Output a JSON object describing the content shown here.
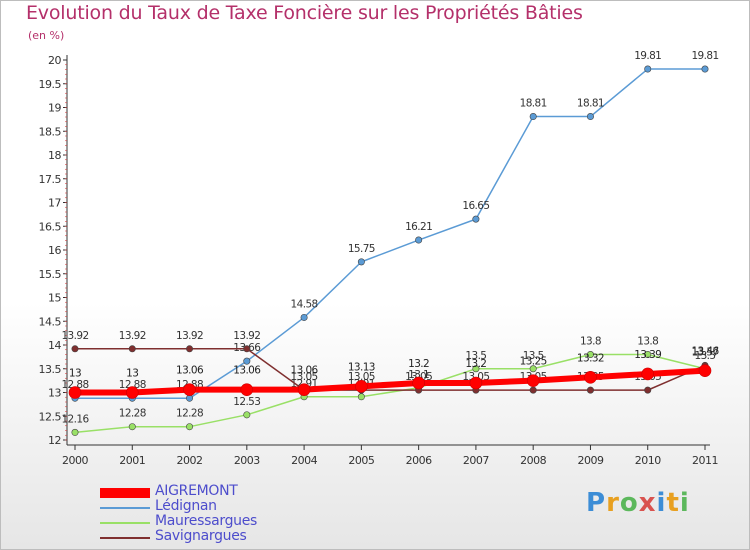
{
  "title": "Evolution du Taux de Taxe Foncière sur les Propriétés Bâties",
  "unit_label": "(en %)",
  "brand": "Proxiti",
  "brand_letters": [
    {
      "ch": "P",
      "color": "#3c8dd6"
    },
    {
      "ch": "r",
      "color": "#e8a020"
    },
    {
      "ch": "o",
      "color": "#5cb85c"
    },
    {
      "ch": "x",
      "color": "#d9534f"
    },
    {
      "ch": "i",
      "color": "#3c8dd6"
    },
    {
      "ch": "t",
      "color": "#e8a020"
    },
    {
      "ch": "i",
      "color": "#5cb85c"
    }
  ],
  "chart_data": {
    "type": "line",
    "x": [
      "2000",
      "2001",
      "2002",
      "2003",
      "2004",
      "2005",
      "2006",
      "2007",
      "2008",
      "2009",
      "2010",
      "2011"
    ],
    "ylim": [
      12,
      20
    ],
    "yticks": [
      "12",
      "12.5",
      "13",
      "13.5",
      "14",
      "14.5",
      "15",
      "15.5",
      "16",
      "16.5",
      "17",
      "17.5",
      "18",
      "18.5",
      "19",
      "19.5",
      "20"
    ],
    "grid": false,
    "legend_position": "bottom-left",
    "series": [
      {
        "name": "AIGREMONT",
        "color": "#ff0000",
        "values": [
          13,
          13,
          13.06,
          13.06,
          13.06,
          13.13,
          13.2,
          13.2,
          13.25,
          13.32,
          13.39,
          13.46
        ],
        "labels": [
          "13",
          "13",
          "13.06",
          "13.06",
          "13.06",
          "13.13",
          "13.2",
          "13.2",
          "13.25",
          "13.32",
          "13.39",
          "13.46"
        ]
      },
      {
        "name": "Lédignan",
        "color": "#5b9bd5",
        "values": [
          12.88,
          12.88,
          12.88,
          13.66,
          14.58,
          15.75,
          16.21,
          16.65,
          18.81,
          18.81,
          19.81,
          19.81
        ],
        "labels": [
          "12.88",
          "12.88",
          "12.88",
          "13.66",
          "14.58",
          "15.75",
          "16.21",
          "16.65",
          "18.81",
          "18.81",
          "19.81",
          "19.81"
        ]
      },
      {
        "name": "Mauressargues",
        "color": "#99e066",
        "values": [
          12.16,
          12.28,
          12.28,
          12.53,
          12.91,
          12.91,
          13.1,
          13.5,
          13.5,
          13.8,
          13.8,
          13.5
        ],
        "labels": [
          "12.16",
          "12.28",
          "12.28",
          "12.53",
          "12.91",
          "12.91",
          "13.1",
          "13.5",
          "13.5",
          "13.8",
          "13.8",
          "13.5"
        ]
      },
      {
        "name": "Savignargues",
        "color": "#7f2f2f",
        "values": [
          13.92,
          13.92,
          13.92,
          13.92,
          13.05,
          13.05,
          13.05,
          13.05,
          13.05,
          13.05,
          13.05,
          13.57
        ],
        "labels": [
          "13.92",
          "13.92",
          "13.92",
          "13.92",
          "13.05",
          "13.05",
          "13.05",
          "13.05",
          "13.05",
          "13.05",
          "13.05",
          "13.57"
        ]
      }
    ]
  }
}
